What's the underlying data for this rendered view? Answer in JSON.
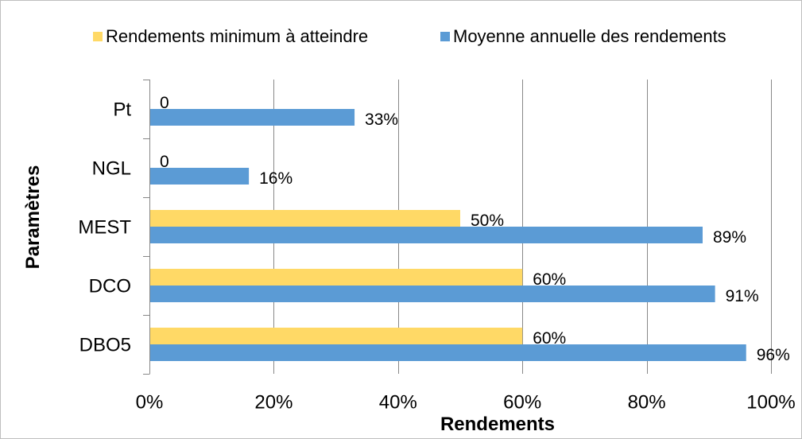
{
  "chart_data": {
    "type": "bar",
    "orientation": "horizontal",
    "categories": [
      "Pt",
      "NGL",
      "MEST",
      "DCO",
      "DBO5"
    ],
    "series": [
      {
        "name": "Rendements minimum à atteindre",
        "values": [
          0,
          0,
          50,
          60,
          60
        ],
        "data_labels": [
          "0",
          "0",
          "50%",
          "60%",
          "60%"
        ],
        "color": "#FFD966"
      },
      {
        "name": "Moyenne annuelle des rendements",
        "values": [
          33,
          16,
          89,
          91,
          96
        ],
        "data_labels": [
          "33%",
          "16%",
          "89%",
          "91%",
          "96%"
        ],
        "color": "#5B9BD5"
      }
    ],
    "xlabel": "Rendements",
    "ylabel": "Paramètres",
    "xlim": [
      0,
      100
    ],
    "xticks": [
      0,
      20,
      40,
      60,
      80,
      100
    ],
    "xtick_labels": [
      "0%",
      "20%",
      "40%",
      "60%",
      "80%",
      "100%"
    ],
    "grid": true,
    "legend": "top"
  }
}
